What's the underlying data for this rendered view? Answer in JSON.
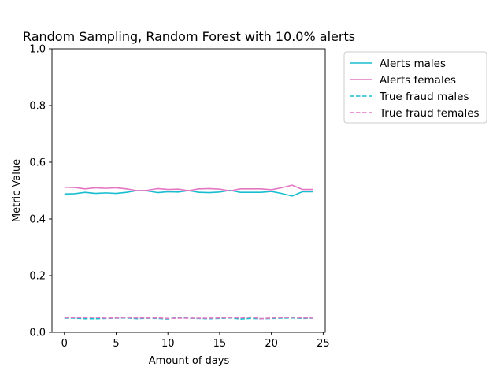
{
  "chart_data": {
    "type": "line",
    "title": "Random Sampling, Random Forest with 10.0% alerts",
    "xlabel": "Amount of days",
    "ylabel": "Metric Value",
    "xlim": [
      -1.2,
      25.2
    ],
    "ylim": [
      0.0,
      1.0
    ],
    "xticks": [
      0,
      5,
      10,
      15,
      20,
      25
    ],
    "yticks": [
      0.0,
      0.2,
      0.4,
      0.6,
      0.8,
      1.0
    ],
    "xtick_labels": [
      "0",
      "5",
      "10",
      "15",
      "20",
      "25"
    ],
    "ytick_labels": [
      "0.0",
      "0.2",
      "0.4",
      "0.6",
      "0.8",
      "1.0"
    ],
    "grid": false,
    "legend_placement": "outside-right-top",
    "x": [
      0,
      1,
      2,
      3,
      4,
      5,
      6,
      7,
      8,
      9,
      10,
      11,
      12,
      13,
      14,
      15,
      16,
      17,
      18,
      19,
      20,
      21,
      22,
      23,
      24
    ],
    "series": [
      {
        "name": "Alerts males",
        "color": "#17becf",
        "style": "solid",
        "values": [
          0.488,
          0.489,
          0.494,
          0.49,
          0.492,
          0.49,
          0.494,
          0.5,
          0.499,
          0.493,
          0.496,
          0.495,
          0.5,
          0.494,
          0.493,
          0.495,
          0.501,
          0.494,
          0.494,
          0.494,
          0.497,
          0.49,
          0.481,
          0.496,
          0.496
        ]
      },
      {
        "name": "Alerts females",
        "color": "#e377c2",
        "style": "solid",
        "values": [
          0.512,
          0.511,
          0.506,
          0.51,
          0.508,
          0.51,
          0.506,
          0.5,
          0.501,
          0.507,
          0.504,
          0.505,
          0.5,
          0.506,
          0.507,
          0.505,
          0.499,
          0.506,
          0.506,
          0.506,
          0.503,
          0.51,
          0.519,
          0.504,
          0.504
        ]
      },
      {
        "name": "True fraud males",
        "color": "#17becf",
        "style": "dashed",
        "values": [
          0.05,
          0.05,
          0.048,
          0.048,
          0.049,
          0.05,
          0.051,
          0.048,
          0.05,
          0.049,
          0.047,
          0.053,
          0.05,
          0.049,
          0.048,
          0.049,
          0.051,
          0.047,
          0.049,
          0.048,
          0.049,
          0.05,
          0.051,
          0.049,
          0.05
        ]
      },
      {
        "name": "True fraud females",
        "color": "#e377c2",
        "style": "dashed",
        "values": [
          0.052,
          0.052,
          0.052,
          0.053,
          0.05,
          0.051,
          0.052,
          0.051,
          0.051,
          0.051,
          0.049,
          0.05,
          0.05,
          0.05,
          0.05,
          0.051,
          0.052,
          0.051,
          0.054,
          0.048,
          0.051,
          0.052,
          0.053,
          0.051,
          0.051
        ]
      }
    ]
  }
}
